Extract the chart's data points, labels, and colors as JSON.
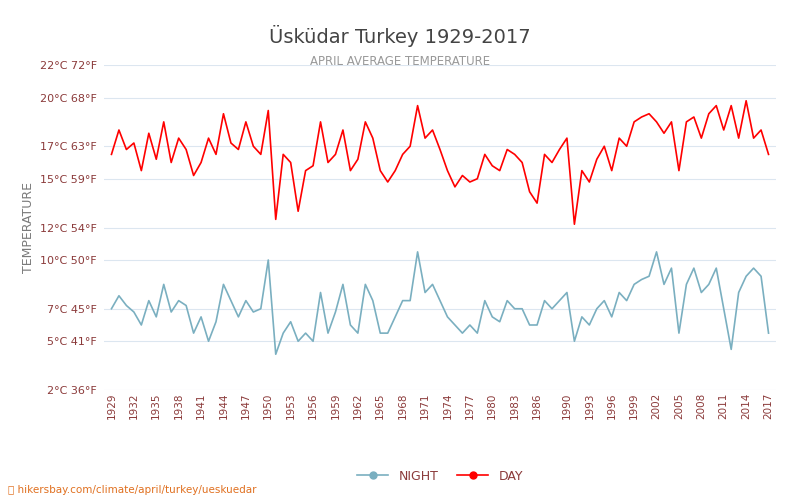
{
  "title": "Üsküdar Turkey 1929-2017",
  "subtitle": "APRIL AVERAGE TEMPERATURE",
  "ylabel": "TEMPERATURE",
  "footer": "hikersbay.com/climate/april/turkey/ueskuedar",
  "years": [
    1929,
    1930,
    1931,
    1932,
    1933,
    1934,
    1935,
    1936,
    1937,
    1938,
    1939,
    1940,
    1941,
    1942,
    1943,
    1944,
    1945,
    1946,
    1947,
    1948,
    1949,
    1950,
    1951,
    1952,
    1953,
    1954,
    1955,
    1956,
    1957,
    1958,
    1959,
    1960,
    1961,
    1962,
    1963,
    1964,
    1965,
    1966,
    1967,
    1968,
    1969,
    1970,
    1971,
    1972,
    1973,
    1974,
    1975,
    1976,
    1977,
    1978,
    1979,
    1980,
    1981,
    1982,
    1983,
    1984,
    1985,
    1986,
    1987,
    1988,
    1989,
    1990,
    1991,
    1992,
    1993,
    1994,
    1995,
    1996,
    1997,
    1998,
    1999,
    2000,
    2001,
    2002,
    2003,
    2004,
    2005,
    2006,
    2007,
    2008,
    2009,
    2010,
    2011,
    2012,
    2013,
    2014,
    2015,
    2016,
    2017
  ],
  "day_temps": [
    16.5,
    18.0,
    16.8,
    17.2,
    15.5,
    17.8,
    16.2,
    18.5,
    16.0,
    17.5,
    16.8,
    15.2,
    16.0,
    17.5,
    16.5,
    19.0,
    17.2,
    16.8,
    18.5,
    17.0,
    16.5,
    19.2,
    12.5,
    16.5,
    16.0,
    13.0,
    15.5,
    15.8,
    18.5,
    16.0,
    16.5,
    18.0,
    15.5,
    16.2,
    18.5,
    17.5,
    15.5,
    14.8,
    15.5,
    16.5,
    17.0,
    19.5,
    17.5,
    18.0,
    16.8,
    15.5,
    14.5,
    15.2,
    14.8,
    15.0,
    16.5,
    15.8,
    15.5,
    16.8,
    16.5,
    16.0,
    14.2,
    13.5,
    16.5,
    16.0,
    16.8,
    17.5,
    12.2,
    15.5,
    14.8,
    16.2,
    17.0,
    15.5,
    17.5,
    17.0,
    18.5,
    18.8,
    19.0,
    18.5,
    17.8,
    18.5,
    15.5,
    18.5,
    18.8,
    17.5,
    19.0,
    19.5,
    18.0,
    19.5,
    17.5,
    19.8,
    17.5,
    18.0,
    16.5
  ],
  "night_temps": [
    7.0,
    7.8,
    7.2,
    6.8,
    6.0,
    7.5,
    6.5,
    8.5,
    6.8,
    7.5,
    7.2,
    5.5,
    6.5,
    5.0,
    6.2,
    8.5,
    7.5,
    6.5,
    7.5,
    6.8,
    7.0,
    10.0,
    4.2,
    5.5,
    6.2,
    5.0,
    5.5,
    5.0,
    8.0,
    5.5,
    6.8,
    8.5,
    6.0,
    5.5,
    8.5,
    7.5,
    5.5,
    5.5,
    6.5,
    7.5,
    7.5,
    10.5,
    8.0,
    8.5,
    7.5,
    6.5,
    6.0,
    5.5,
    6.0,
    5.5,
    7.5,
    6.5,
    6.2,
    7.5,
    7.0,
    7.0,
    6.0,
    6.0,
    7.5,
    7.0,
    7.5,
    8.0,
    5.0,
    6.5,
    6.0,
    7.0,
    7.5,
    6.5,
    8.0,
    7.5,
    8.5,
    8.8,
    9.0,
    10.5,
    8.5,
    9.5,
    5.5,
    8.5,
    9.5,
    8.0,
    8.5,
    9.5,
    7.0,
    4.5,
    8.0,
    9.0,
    9.5,
    9.0,
    5.5
  ],
  "day_color": "#ff0000",
  "night_color": "#7aafc0",
  "background_color": "#ffffff",
  "grid_color": "#dce6f0",
  "tick_color": "#8B3A3A",
  "ylabel_color": "#7a7a7a",
  "ylim": [
    2,
    22
  ],
  "yticks_c": [
    2,
    5,
    7,
    10,
    12,
    15,
    17,
    20,
    22
  ],
  "yticks_f": [
    36,
    41,
    45,
    50,
    54,
    59,
    63,
    68,
    72
  ],
  "xtick_years": [
    1929,
    1932,
    1935,
    1938,
    1941,
    1944,
    1947,
    1950,
    1953,
    1956,
    1959,
    1962,
    1965,
    1968,
    1971,
    1974,
    1977,
    1980,
    1983,
    1986,
    1990,
    1993,
    1996,
    1999,
    2002,
    2005,
    2008,
    2011,
    2014,
    2017
  ]
}
